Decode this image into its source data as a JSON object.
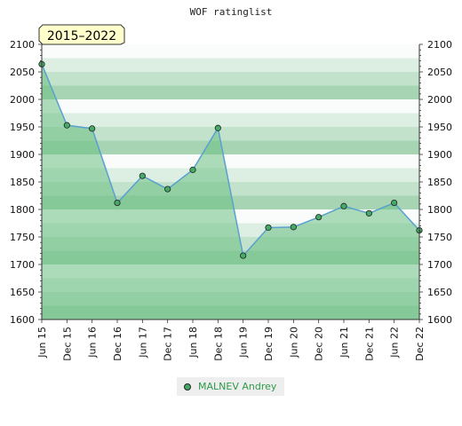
{
  "chart_data": {
    "type": "area",
    "title": "WOF ratinglist",
    "period_badge": "2015–2022",
    "categories": [
      "Jun 15",
      "Dec 15",
      "Jun 16",
      "Dec 16",
      "Jun 17",
      "Dec 17",
      "Jun 18",
      "Dec 18",
      "Jun 19",
      "Dec 19",
      "Jun 20",
      "Dec 20",
      "Jun 21",
      "Dec 21",
      "Jun 22",
      "Dec 22"
    ],
    "series": [
      {
        "name": "MALNEV Andrey",
        "values": [
          2064,
          1953,
          1947,
          1812,
          1861,
          1837,
          1872,
          1948,
          1716,
          1767,
          1768,
          1786,
          1806,
          1793,
          1812,
          1762
        ]
      }
    ],
    "ylim": [
      1600,
      2100
    ],
    "yticks": [
      1600,
      1650,
      1700,
      1750,
      1800,
      1850,
      1900,
      1950,
      2000,
      2050,
      2100
    ],
    "grid": true,
    "legend_position": "bottom-center",
    "colors": {
      "line": "#5aa0d0",
      "marker_fill": "#44aa66",
      "fill": "#6cbf84",
      "band_dark": "#5fb277",
      "band_light": "#ffffff"
    }
  }
}
